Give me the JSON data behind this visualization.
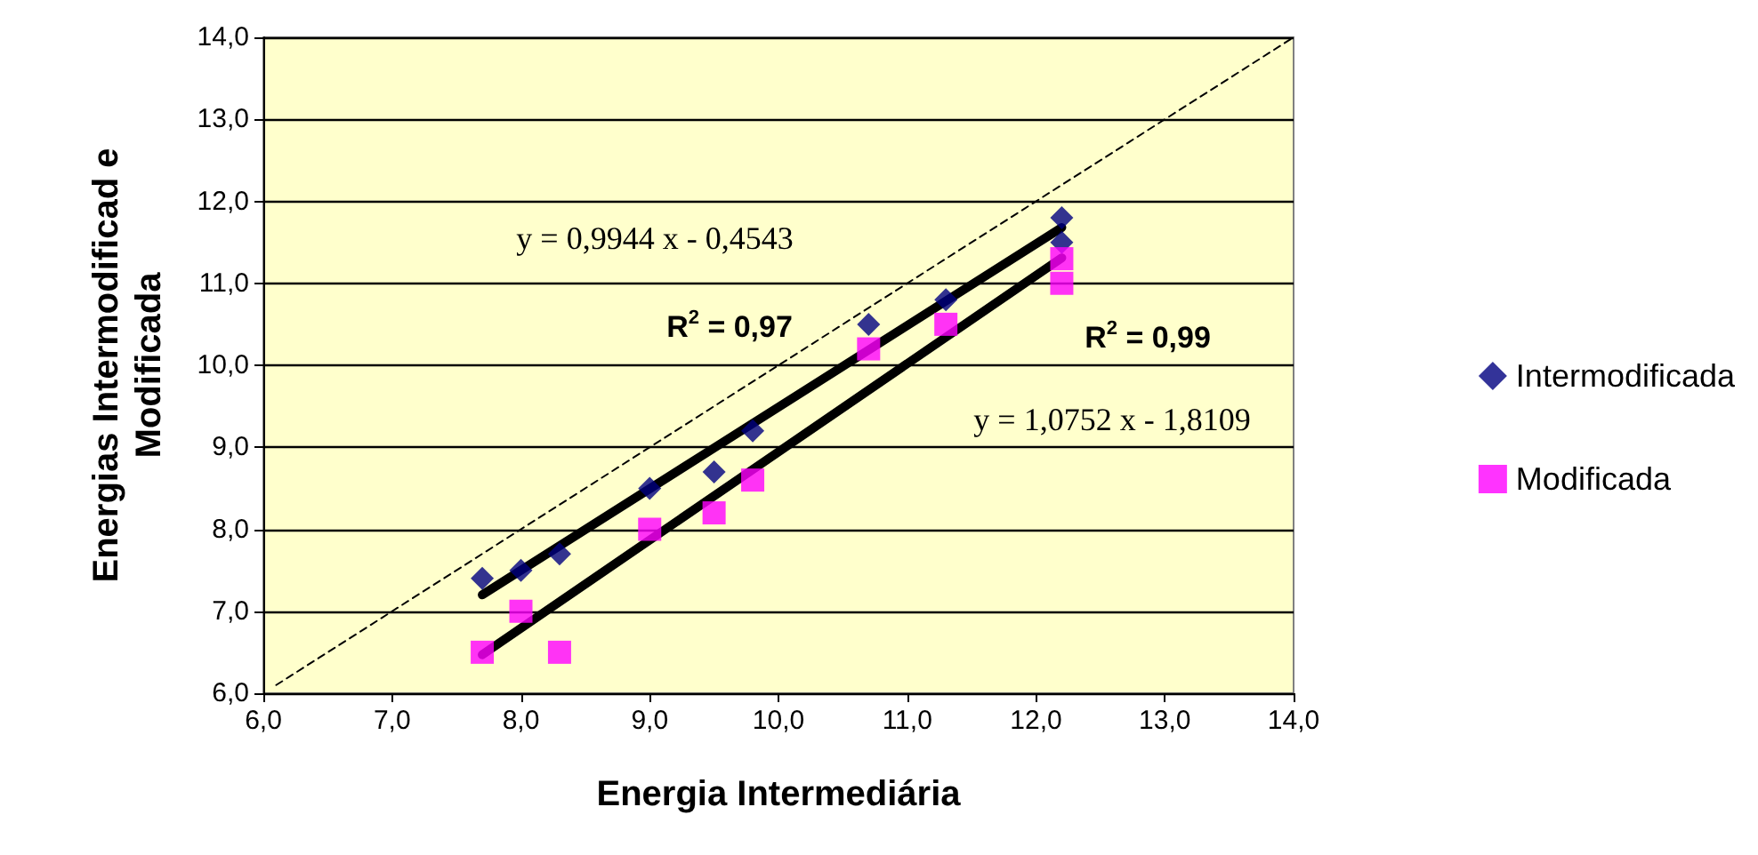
{
  "chart_data": {
    "type": "scatter",
    "xlabel": "Energia Intermediária",
    "ylabel": "Energias Intermodificad e\nModificada",
    "xlim": [
      6.0,
      14.0
    ],
    "ylim": [
      6.0,
      14.0
    ],
    "xticks": [
      {
        "value": 6,
        "label": "6,0"
      },
      {
        "value": 7,
        "label": "7,0"
      },
      {
        "value": 8,
        "label": "8,0"
      },
      {
        "value": 9,
        "label": "9,0"
      },
      {
        "value": 10,
        "label": "10,0"
      },
      {
        "value": 11,
        "label": "11,0"
      },
      {
        "value": 12,
        "label": "12,0"
      },
      {
        "value": 13,
        "label": "13,0"
      },
      {
        "value": 14,
        "label": "14,0"
      }
    ],
    "yticks": [
      {
        "value": 6,
        "label": "6,0"
      },
      {
        "value": 7,
        "label": "7,0"
      },
      {
        "value": 8,
        "label": "8,0"
      },
      {
        "value": 9,
        "label": "9,0"
      },
      {
        "value": 10,
        "label": "10,0"
      },
      {
        "value": 11,
        "label": "11,0"
      },
      {
        "value": 12,
        "label": "12,0"
      },
      {
        "value": 13,
        "label": "13,0"
      },
      {
        "value": 14,
        "label": "14,0"
      }
    ],
    "grid": "y",
    "legend": "right",
    "series": [
      {
        "name": "Intermodificada",
        "color": "#000080",
        "marker": "diamond",
        "x": [
          7.7,
          8.0,
          8.3,
          9.0,
          9.5,
          9.8,
          10.7,
          11.3,
          12.2,
          12.2
        ],
        "values": [
          7.4,
          7.5,
          7.7,
          8.5,
          8.7,
          9.2,
          10.5,
          10.8,
          11.8,
          11.5
        ]
      },
      {
        "name": "Modificada",
        "color": "#ff00ff",
        "marker": "square",
        "x": [
          7.7,
          8.0,
          8.3,
          9.0,
          9.5,
          9.8,
          10.7,
          11.3,
          12.2,
          12.2
        ],
        "values": [
          6.5,
          7.0,
          6.5,
          8.0,
          8.2,
          8.6,
          10.2,
          10.5,
          11.3,
          11.0
        ]
      },
      {
        "type": "line",
        "color": "#000000",
        "marker": "none",
        "line_style": "solid",
        "x": [
          7.7,
          12.2
        ],
        "values": [
          7.2,
          11.68
        ]
      },
      {
        "type": "line",
        "color": "#000000",
        "marker": "none",
        "line_style": "solid",
        "x": [
          7.7,
          12.2
        ],
        "values": [
          6.47,
          11.31
        ]
      },
      {
        "type": "line",
        "color": "#000000",
        "marker": "none",
        "line_style": "dashed",
        "x": [
          6.1,
          14.0
        ],
        "values": [
          6.1,
          14.0
        ]
      }
    ],
    "annotations": [
      "y = 0,9944 x - 0,4543",
      "y = 1,0752 x - 1,8109",
      "R$^{2}$ = 0,97",
      "R$^{2}$ = 0,99"
    ]
  }
}
